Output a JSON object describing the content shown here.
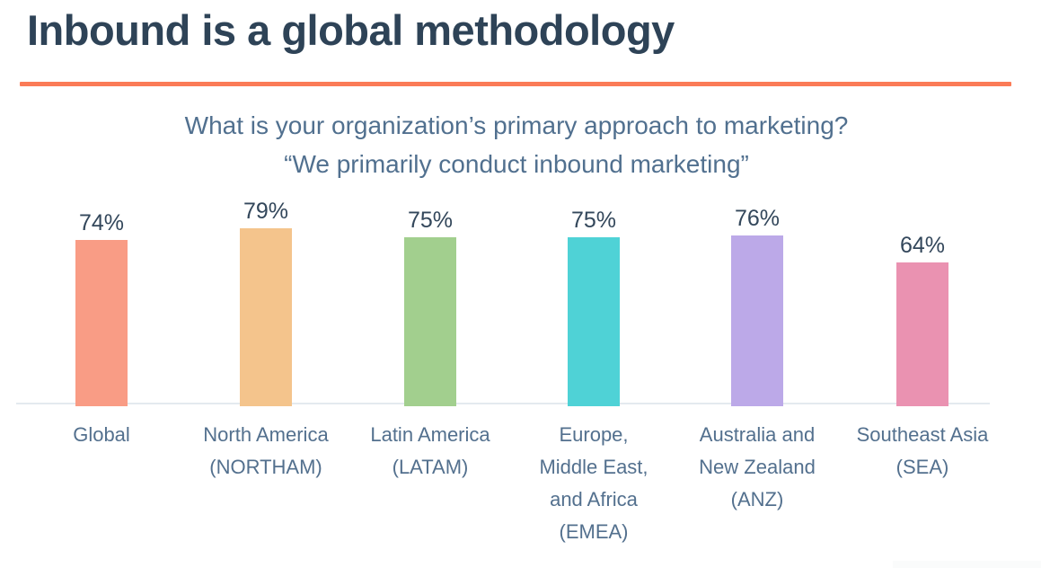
{
  "slide": {
    "title": "Inbound is a global methodology",
    "title_color": "#2E4357",
    "accent_color": "#FB7B57"
  },
  "chart_data": {
    "type": "bar",
    "title": "What is your organization’s primary approach to marketing?",
    "subtitle": "“We primarily conduct inbound marketing”",
    "categories": [
      "Global",
      "North America (NORTHAM)",
      "Latin America (LATAM)",
      "Europe, Middle East, and Africa (EMEA)",
      "Australia and New Zealand (ANZ)",
      "Southeast Asia (SEA)"
    ],
    "values": [
      74,
      79,
      75,
      75,
      76,
      64
    ],
    "value_labels": [
      "74%",
      "79%",
      "75%",
      "75%",
      "76%",
      "64%"
    ],
    "bar_colors": [
      "#F99C85",
      "#F4C48C",
      "#A2CF8E",
      "#4FD2D6",
      "#BCA9E8",
      "#EA92B1"
    ],
    "label_lines": [
      [
        "Global"
      ],
      [
        "North America",
        "(NORTHAM)"
      ],
      [
        "Latin America",
        "(LATAM)"
      ],
      [
        "Europe,",
        "Middle East,",
        "and Africa",
        "(EMEA)"
      ],
      [
        "Australia and",
        "New Zealand",
        "(ANZ)"
      ],
      [
        "Southeast Asia",
        "(SEA)"
      ]
    ],
    "ylim": [
      0,
      100
    ],
    "grid": false,
    "legend": "none",
    "value_label_color": "#33475B",
    "category_label_color": "#53708E",
    "baseline_color": "#E4EAEF"
  }
}
